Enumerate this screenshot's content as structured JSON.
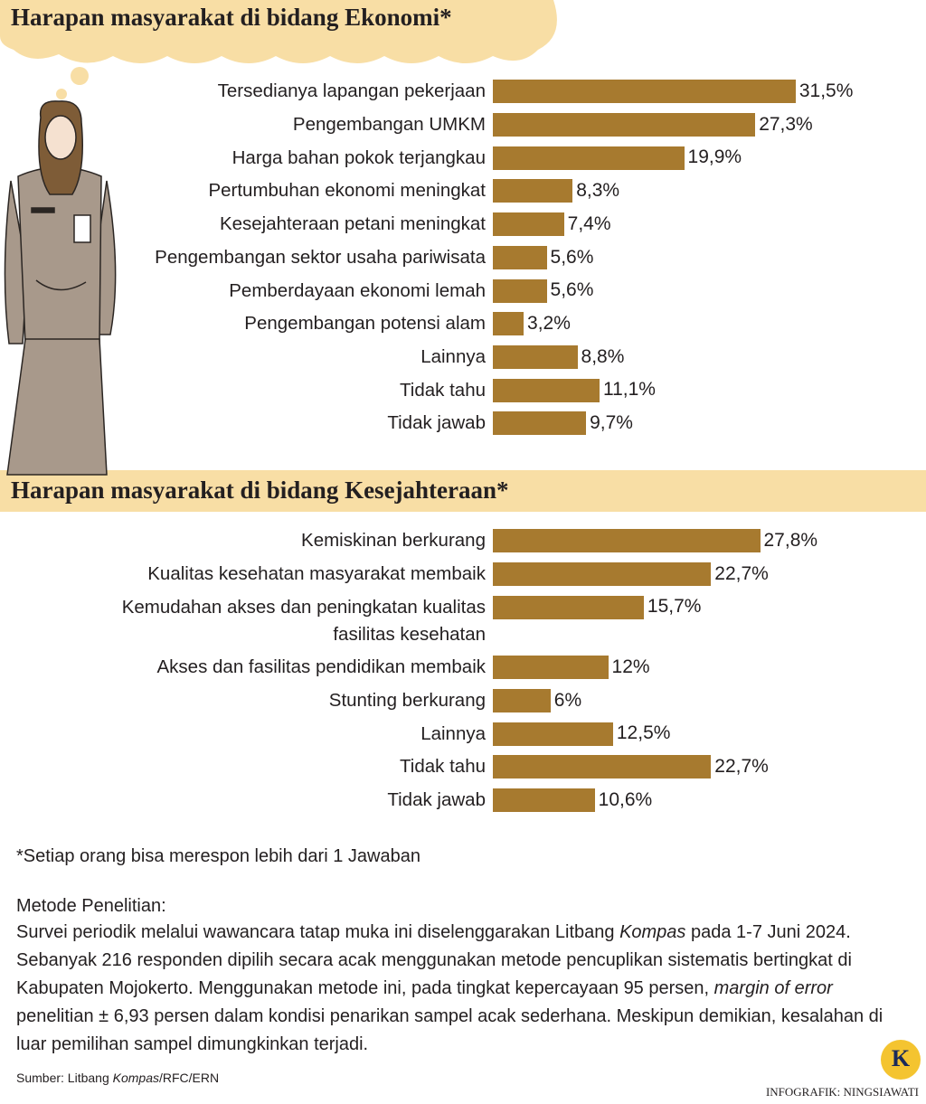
{
  "chart_data": [
    {
      "type": "bar",
      "orientation": "horizontal",
      "title": "Harapan masyarakat di bidang Ekonomi*",
      "color": "#a77a2f",
      "categories": [
        "Tersedianya lapangan pekerjaan",
        "Pengembangan UMKM",
        "Harga bahan pokok terjangkau",
        "Pertumbuhan ekonomi meningkat",
        "Kesejahteraan petani meningkat",
        "Pengembangan sektor usaha pariwisata",
        "Pemberdayaan ekonomi lemah",
        "Pengembangan potensi alam",
        "Lainnya",
        "Tidak tahu",
        "Tidak jawab"
      ],
      "values": [
        31.5,
        27.3,
        19.9,
        8.3,
        7.4,
        5.6,
        5.6,
        3.2,
        8.8,
        11.1,
        9.7
      ],
      "value_labels": [
        "31,5%",
        "27,3%",
        "19,9%",
        "8,3%",
        "7,4%",
        "5,6%",
        "5,6%",
        "3,2%",
        "8,8%",
        "11,1%",
        "9,7%"
      ]
    },
    {
      "type": "bar",
      "orientation": "horizontal",
      "title": "Harapan masyarakat di bidang Kesejahteraan*",
      "color": "#a77a2f",
      "categories": [
        "Kemiskinan berkurang",
        "Kualitas kesehatan masyarakat membaik",
        "Kemudahan akses dan peningkatan kualitas fasilitas kesehatan",
        "Akses dan fasilitas pendidikan membaik",
        "Stunting berkurang",
        "Lainnya",
        "Tidak tahu",
        "Tidak jawab"
      ],
      "values": [
        27.8,
        22.7,
        15.7,
        12,
        6,
        12.5,
        22.7,
        10.6
      ],
      "value_labels": [
        "27,8%",
        "22,7%",
        "15,7%",
        "12%",
        "6%",
        "12,5%",
        "22,7%",
        "10,6%"
      ]
    }
  ],
  "footnote": "*Setiap orang bisa merespon lebih dari 1 Jawaban",
  "method": {
    "title": "Metode Penelitian:",
    "text": [
      {
        "text": "Survei periodik melalui wawancara tatap muka ini diselenggarakan Litbang ",
        "italic": false
      },
      {
        "text": "Kompas",
        "italic": true
      },
      {
        "text": " pada 1-7 Juni 2024. Sebanyak 216 responden dipilih secara acak menggunakan metode pencuplikan sistematis bertingkat di Kabupaten Mojokerto. Menggunakan metode ini, pada tingkat kepercayaan 95 persen, ",
        "italic": false
      },
      {
        "text": "margin of error",
        "italic": true
      },
      {
        "text": " penelitian ± 6,93 persen dalam kondisi penarikan sampel acak sederhana. Meskipun demikian, kesalahan di luar pemilihan sampel dimungkinkan terjadi.",
        "italic": false
      }
    ]
  },
  "source": [
    {
      "text": "Sumber: Litbang ",
      "italic": false
    },
    {
      "text": "Kompas",
      "italic": true
    },
    {
      "text": "/RFC/ERN",
      "italic": false
    }
  ],
  "credit": "INFOGRAFIK: NINGSIAWATI",
  "logo": "K"
}
